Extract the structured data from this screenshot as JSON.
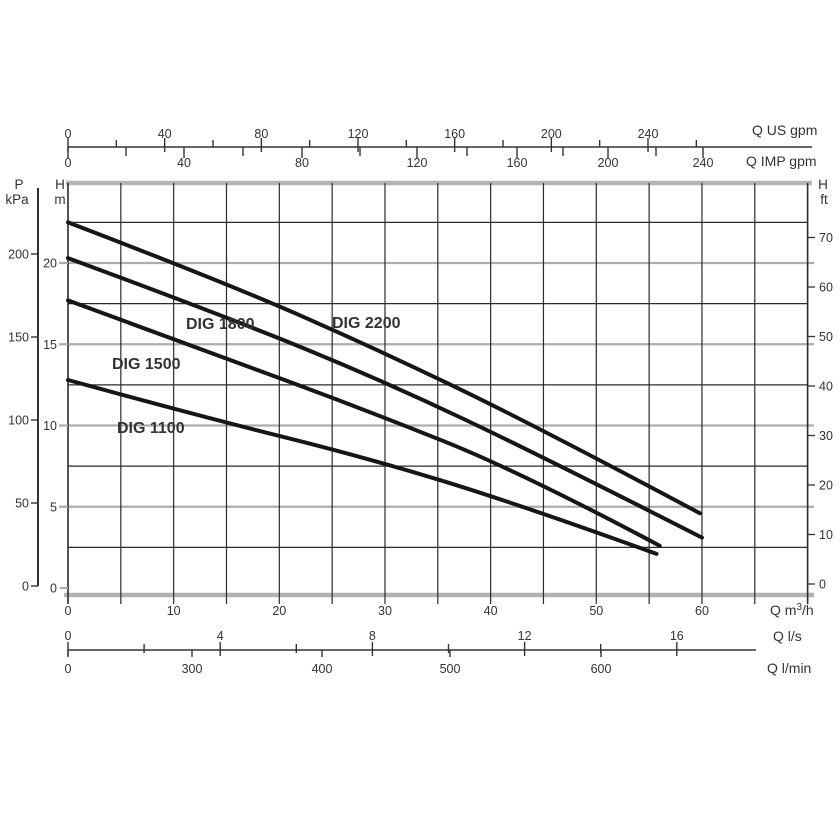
{
  "colors": {
    "background": "#ffffff",
    "curve": "#161616",
    "text": "#333333",
    "grid_dark": "#2b2b2b",
    "grid_gray": "#adadad",
    "plot_border": "#b3b3b3",
    "axis_line": "#333333"
  },
  "chart_data": {
    "type": "line",
    "title": "",
    "x_range_m3h": [
      0,
      70
    ],
    "y_range_m": [
      0,
      25
    ],
    "grid": {
      "x_step_m3h": 5,
      "y_step_m": 2.5,
      "gray_lines_every_m": 5
    },
    "legend_position": "inline-curve-labels",
    "point_units": [
      "Q in m3/h",
      "H in m"
    ],
    "series": [
      {
        "name": "DIG 2200",
        "points": [
          [
            0,
            22.5
          ],
          [
            14.9,
            18.8
          ],
          [
            29.9,
            14.5
          ],
          [
            44.8,
            9.8
          ],
          [
            59.8,
            4.6
          ]
        ]
      },
      {
        "name": "DIG 1800",
        "points": [
          [
            0,
            20.3
          ],
          [
            15.0,
            16.7
          ],
          [
            30.0,
            12.7
          ],
          [
            44.9,
            8.1
          ],
          [
            60.0,
            3.1
          ]
        ]
      },
      {
        "name": "DIG 1500",
        "points": [
          [
            0,
            17.7
          ],
          [
            13.0,
            14.6
          ],
          [
            28.0,
            11.0
          ],
          [
            43.0,
            7.1
          ],
          [
            56.0,
            2.6
          ]
        ]
      },
      {
        "name": "DIG 1100",
        "points": [
          [
            0,
            12.8
          ],
          [
            12.3,
            10.6
          ],
          [
            27.8,
            8.1
          ],
          [
            42.5,
            5.2
          ],
          [
            55.7,
            2.1
          ]
        ]
      }
    ],
    "axes": {
      "top_us": {
        "title": "Q US gpm",
        "tick_labels": [
          0,
          40,
          80,
          120,
          160,
          200,
          240
        ],
        "minor_step": 20
      },
      "top_imp": {
        "title": "Q IMP gpm",
        "tick_labels": [
          0,
          40,
          80,
          120,
          160,
          200,
          240
        ],
        "minor_step": 20
      },
      "left_kpa": {
        "title_parts": [
          "P",
          "kPa"
        ],
        "tick_labels": [
          200,
          150,
          100,
          50,
          0
        ]
      },
      "left_m": {
        "title_parts": [
          "H",
          "m"
        ],
        "tick_labels": [
          20,
          15,
          10,
          5,
          0
        ]
      },
      "right_ft": {
        "title_parts": [
          "H",
          "ft"
        ],
        "tick_labels": [
          70,
          60,
          50,
          40,
          30,
          20,
          10,
          0
        ]
      },
      "bottom_m3h": {
        "title_parts": [
          "Q m",
          "3",
          "/h"
        ],
        "tick_labels": [
          0,
          10,
          20,
          30,
          40,
          50,
          60
        ]
      },
      "bottom_ls": {
        "title": "Q l/s",
        "tick_labels": [
          0,
          4,
          8,
          12,
          16
        ],
        "minor_step": 2
      },
      "bottom_lmin": {
        "title": "Q l/min",
        "tick_labels": [
          0,
          300,
          400,
          500,
          600
        ]
      }
    }
  }
}
